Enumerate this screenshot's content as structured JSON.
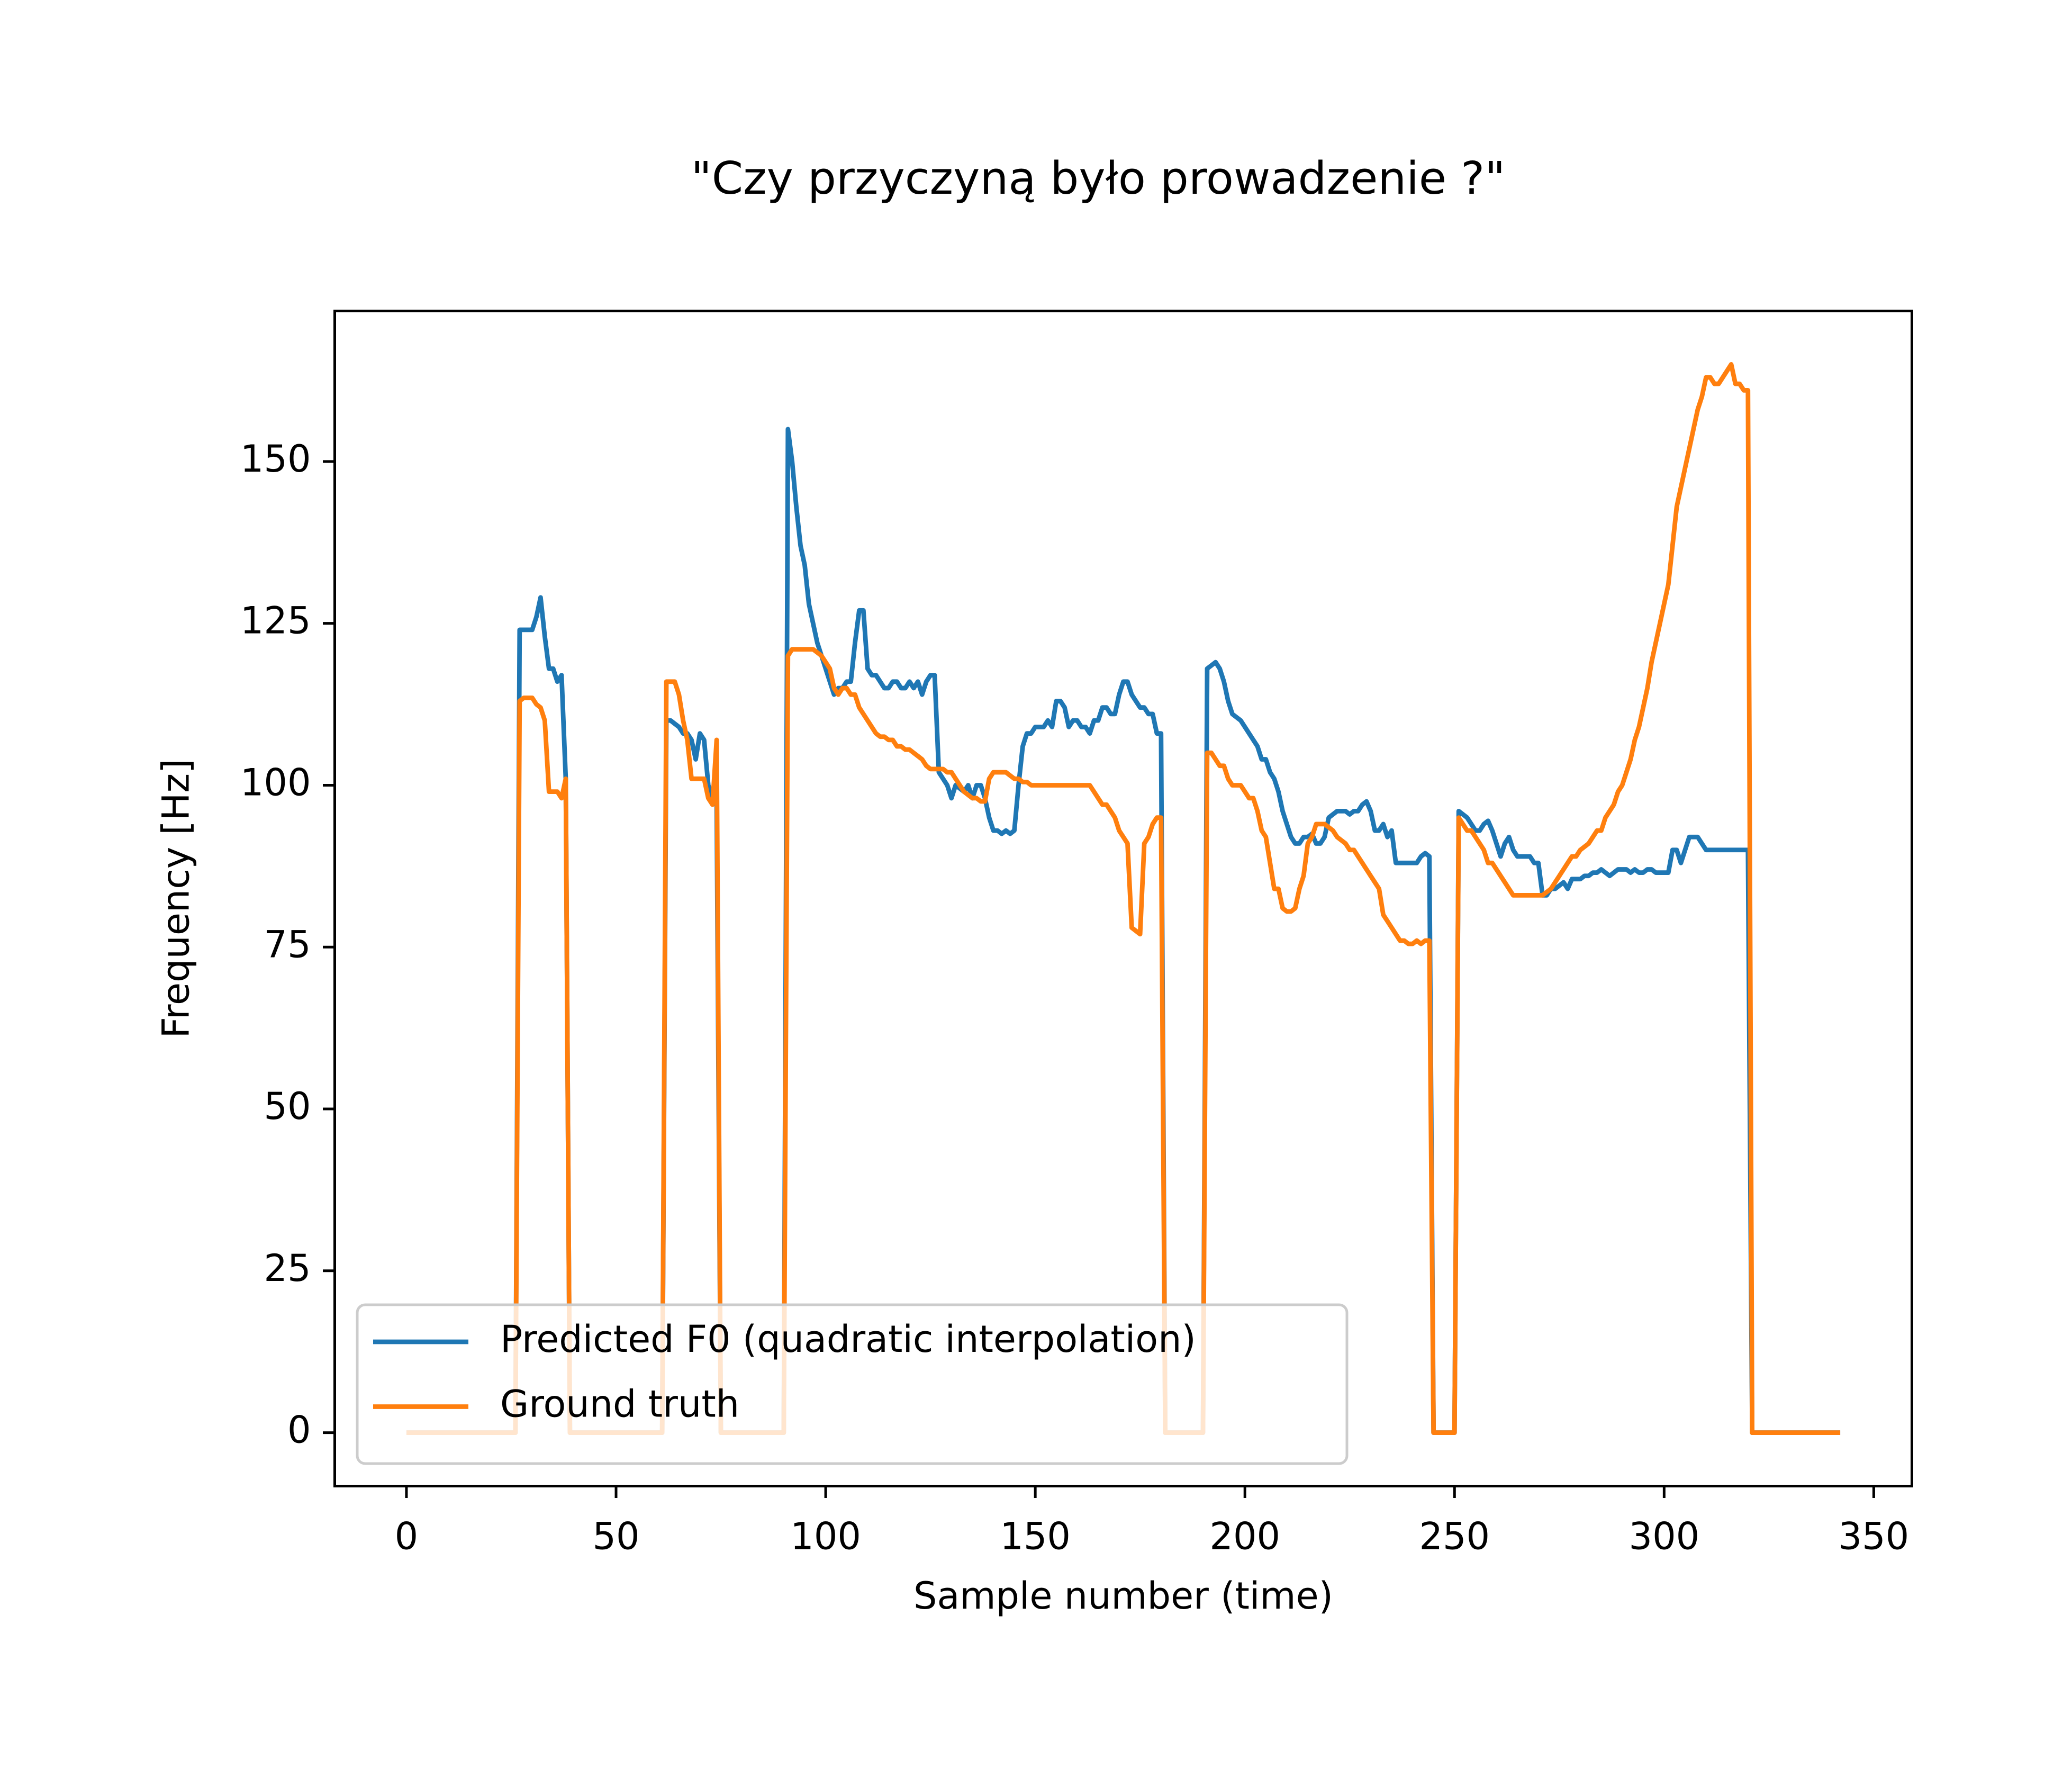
{
  "chart_data": {
    "type": "line",
    "title": "\"Czy przyczyną było prowadzenie ?\"",
    "x_label": "Sample number (time)",
    "y_label": "Frequency [Hz]",
    "xlim": [
      -17.1,
      359.1
    ],
    "ylim": [
      -8.25,
      173.25
    ],
    "xticks": [
      0,
      50,
      100,
      150,
      200,
      250,
      300,
      350
    ],
    "yticks": [
      0,
      25,
      50,
      75,
      100,
      125,
      150
    ],
    "grid": false,
    "legend": "lower left",
    "x": [
      0,
      1,
      2,
      3,
      4,
      5,
      6,
      7,
      8,
      9,
      10,
      11,
      12,
      13,
      14,
      15,
      16,
      17,
      18,
      19,
      20,
      21,
      22,
      23,
      24,
      25,
      26,
      27,
      28,
      29,
      30,
      31,
      32,
      33,
      34,
      35,
      36,
      37,
      38,
      39,
      40,
      41,
      42,
      43,
      44,
      45,
      46,
      47,
      48,
      49,
      50,
      51,
      52,
      53,
      54,
      55,
      56,
      57,
      58,
      59,
      60,
      61,
      62,
      63,
      64,
      65,
      66,
      67,
      68,
      69,
      70,
      71,
      72,
      73,
      74,
      75,
      76,
      77,
      78,
      79,
      80,
      81,
      82,
      83,
      84,
      85,
      86,
      87,
      88,
      89,
      90,
      91,
      92,
      93,
      94,
      95,
      96,
      97,
      98,
      99,
      100,
      101,
      102,
      103,
      104,
      105,
      106,
      107,
      108,
      109,
      110,
      111,
      112,
      113,
      114,
      115,
      116,
      117,
      118,
      119,
      120,
      121,
      122,
      123,
      124,
      125,
      126,
      127,
      128,
      129,
      130,
      131,
      132,
      133,
      134,
      135,
      136,
      137,
      138,
      139,
      140,
      141,
      142,
      143,
      144,
      145,
      146,
      147,
      148,
      149,
      150,
      151,
      152,
      153,
      154,
      155,
      156,
      157,
      158,
      159,
      160,
      161,
      162,
      163,
      164,
      165,
      166,
      167,
      168,
      169,
      170,
      171,
      172,
      173,
      174,
      175,
      176,
      177,
      178,
      179,
      180,
      181,
      182,
      183,
      184,
      185,
      186,
      187,
      188,
      189,
      190,
      191,
      192,
      193,
      194,
      195,
      196,
      197,
      198,
      199,
      200,
      201,
      202,
      203,
      204,
      205,
      206,
      207,
      208,
      209,
      210,
      211,
      212,
      213,
      214,
      215,
      216,
      217,
      218,
      219,
      220,
      221,
      222,
      223,
      224,
      225,
      226,
      227,
      228,
      229,
      230,
      231,
      232,
      233,
      234,
      235,
      236,
      237,
      238,
      239,
      240,
      241,
      242,
      243,
      244,
      245,
      246,
      247,
      248,
      249,
      250,
      251,
      252,
      253,
      254,
      255,
      256,
      257,
      258,
      259,
      260,
      261,
      262,
      263,
      264,
      265,
      266,
      267,
      268,
      269,
      270,
      271,
      272,
      273,
      274,
      275,
      276,
      277,
      278,
      279,
      280,
      281,
      282,
      283,
      284,
      285,
      286,
      287,
      288,
      289,
      290,
      291,
      292,
      293,
      294,
      295,
      296,
      297,
      298,
      299,
      300,
      301,
      302,
      303,
      304,
      305,
      306,
      307,
      308,
      309,
      310,
      311,
      312,
      313,
      314,
      315,
      316,
      317,
      318,
      319,
      320,
      321,
      322,
      323,
      324,
      325,
      326,
      327,
      328,
      329,
      330,
      331,
      332,
      333,
      334,
      335,
      336,
      337,
      338,
      339,
      340,
      341,
      342
    ],
    "series": [
      {
        "name": "Predicted F0 (quadratic interpolation)",
        "color": "#1f77b4",
        "values": [
          0,
          0,
          0,
          0,
          0,
          0,
          0,
          0,
          0,
          0,
          0,
          0,
          0,
          0,
          0,
          0,
          0,
          0,
          0,
          0,
          0,
          0,
          0,
          0,
          0,
          0,
          0,
          124,
          124,
          124,
          124,
          126,
          129,
          123,
          118,
          118,
          116,
          117,
          101,
          0,
          0,
          0,
          0,
          0,
          0,
          0,
          0,
          0,
          0,
          0,
          0,
          0,
          0,
          0,
          0,
          0,
          0,
          0,
          0,
          0,
          0,
          0,
          110,
          110,
          109.5,
          109,
          108,
          108,
          107,
          104,
          108,
          107,
          100,
          98,
          97,
          0,
          0,
          0,
          0,
          0,
          0,
          0,
          0,
          0,
          0,
          0,
          0,
          0,
          0,
          0,
          0,
          155,
          150,
          143,
          137,
          134,
          128,
          125,
          122,
          120,
          118,
          116,
          114,
          115,
          115,
          116,
          116,
          122,
          127,
          127,
          118,
          117,
          117,
          116,
          115,
          115,
          116,
          116,
          115,
          115,
          116,
          115,
          116,
          114,
          116,
          117,
          117,
          102,
          101,
          100,
          98,
          100,
          99.5,
          99,
          100,
          98,
          100,
          100,
          98,
          95,
          93,
          93,
          92.5,
          93,
          92.5,
          93,
          100,
          106,
          108,
          108,
          109,
          109,
          109,
          110,
          109,
          113,
          113,
          112,
          109,
          110,
          110,
          109,
          109,
          108,
          110,
          110,
          112,
          112,
          111,
          111,
          114,
          116,
          116,
          114,
          113,
          112,
          112,
          111,
          111,
          108,
          108,
          0,
          0,
          0,
          0,
          0,
          0,
          0,
          0,
          0,
          0,
          118,
          118.5,
          119,
          118,
          116,
          113,
          111,
          110.5,
          110,
          109,
          108,
          107,
          106,
          104,
          104,
          102,
          101,
          99,
          96,
          94,
          92,
          91,
          91,
          92,
          92,
          92.5,
          91,
          91,
          92,
          95,
          95.5,
          96,
          96,
          96,
          95.5,
          96,
          96,
          97,
          97.5,
          96,
          93,
          93,
          94,
          92,
          93,
          88,
          88,
          88,
          88,
          88,
          88,
          89,
          89.5,
          89,
          0,
          0,
          0,
          0,
          0,
          0,
          96,
          95.5,
          95,
          94,
          93,
          93,
          94,
          94.5,
          93,
          91,
          89,
          91,
          92,
          90,
          89,
          89,
          89,
          89,
          88,
          88,
          83,
          83,
          84,
          84,
          84.5,
          85,
          84,
          85.5,
          85.5,
          85.5,
          86,
          86,
          86.5,
          86.5,
          87,
          86.5,
          86,
          86.5,
          87,
          87,
          87,
          86.5,
          87,
          86.5,
          86.5,
          87,
          87,
          86.5,
          86.5,
          86.5,
          86.5,
          90,
          90,
          88,
          90,
          92,
          92,
          92,
          91,
          90,
          90,
          90,
          90,
          90,
          90,
          90,
          90,
          90,
          90,
          90,
          0,
          0,
          0,
          0,
          0,
          0,
          0,
          0,
          0,
          0,
          0,
          0,
          0,
          0,
          0,
          0,
          0,
          0,
          0,
          0,
          0,
          0
        ]
      },
      {
        "name": "Ground truth",
        "color": "#ff7f0e",
        "values": [
          0,
          0,
          0,
          0,
          0,
          0,
          0,
          0,
          0,
          0,
          0,
          0,
          0,
          0,
          0,
          0,
          0,
          0,
          0,
          0,
          0,
          0,
          0,
          0,
          0,
          0,
          0,
          113,
          113.5,
          113.5,
          113.5,
          112.5,
          112,
          110,
          99,
          99,
          99,
          98,
          101,
          0,
          0,
          0,
          0,
          0,
          0,
          0,
          0,
          0,
          0,
          0,
          0,
          0,
          0,
          0,
          0,
          0,
          0,
          0,
          0,
          0,
          0,
          0,
          116,
          116,
          116,
          114,
          110,
          107,
          101,
          101,
          101,
          101,
          98,
          97,
          107,
          0,
          0,
          0,
          0,
          0,
          0,
          0,
          0,
          0,
          0,
          0,
          0,
          0,
          0,
          0,
          0,
          120,
          121,
          121,
          121,
          121,
          121,
          121,
          120.5,
          120,
          119,
          118,
          115,
          114,
          115,
          115,
          114,
          114,
          112,
          111,
          110,
          109,
          108,
          107.5,
          107.5,
          107,
          107,
          106,
          106,
          105.5,
          105.5,
          105,
          104.5,
          104,
          103,
          102.5,
          102.5,
          102.5,
          102.5,
          102,
          102,
          101,
          100,
          99,
          98.5,
          98,
          98,
          97.5,
          97.5,
          101,
          102,
          102,
          102,
          102,
          101.5,
          101,
          101,
          100.5,
          100.5,
          100,
          100,
          100,
          100,
          100,
          100,
          100,
          100,
          100,
          100,
          100,
          100,
          100,
          100,
          100,
          99,
          98,
          97,
          97,
          96,
          95,
          93,
          92,
          91,
          78,
          77.5,
          77,
          91,
          92,
          94,
          95,
          95,
          0,
          0,
          0,
          0,
          0,
          0,
          0,
          0,
          0,
          0,
          105,
          105,
          104,
          103,
          103,
          101,
          100,
          100,
          100,
          99,
          98,
          98,
          96,
          93,
          92,
          88,
          84,
          84,
          81,
          80.5,
          80.5,
          81,
          84,
          86,
          91,
          92,
          94,
          94,
          94,
          93.5,
          93,
          92,
          91.5,
          91,
          90,
          90,
          89,
          88,
          87,
          86,
          85,
          84,
          80,
          79,
          78,
          77,
          76,
          76,
          75.5,
          75.5,
          76,
          75.5,
          76,
          76,
          0,
          0,
          0,
          0,
          0,
          0,
          95,
          94,
          93,
          93,
          92,
          91,
          90,
          88,
          88,
          87,
          86,
          85,
          84,
          83,
          83,
          83,
          83,
          83,
          83,
          83,
          83,
          83.5,
          84,
          85,
          86,
          87,
          88,
          89,
          89,
          90,
          90.5,
          91,
          92,
          93,
          93,
          95,
          96,
          97,
          99,
          100,
          102,
          104,
          107,
          109,
          112,
          115,
          119,
          122,
          125,
          128,
          131,
          137,
          143,
          146,
          149,
          152,
          155,
          158,
          160,
          163,
          163,
          162,
          162,
          163,
          164,
          165,
          162,
          162,
          161,
          161,
          0,
          0,
          0,
          0,
          0,
          0,
          0,
          0,
          0,
          0,
          0,
          0,
          0,
          0,
          0,
          0,
          0,
          0,
          0,
          0,
          0,
          0
        ]
      }
    ]
  }
}
